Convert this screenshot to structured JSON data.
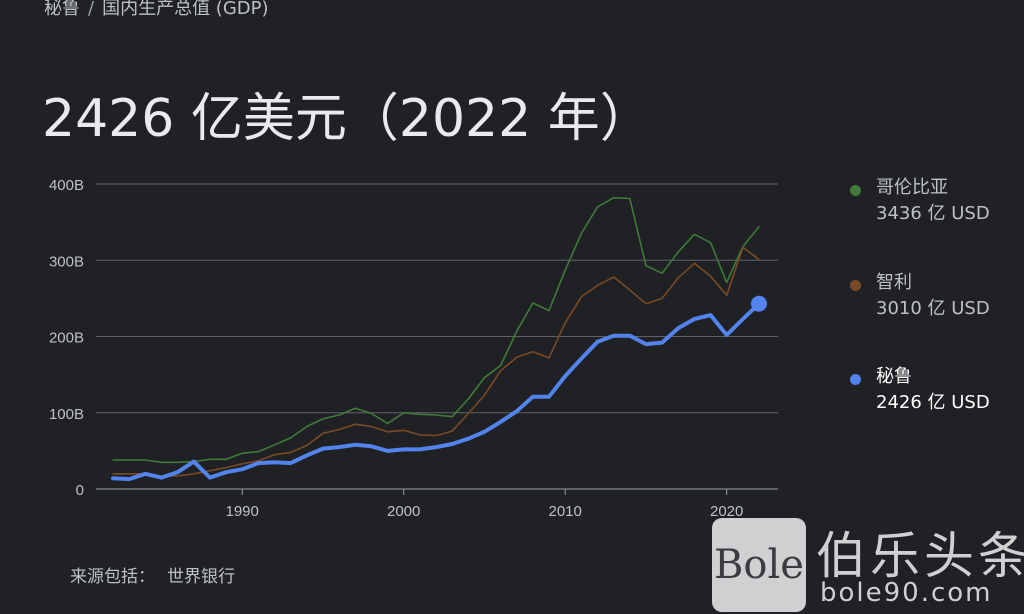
{
  "breadcrumb": {
    "country": "秘鲁",
    "separator": "/",
    "indicator": "国内生产总值 (GDP)"
  },
  "headline": "2426 亿美元（2022 年）",
  "legend": [
    {
      "name": "哥伦比亚",
      "value": "3436 亿 USD",
      "color": "#3f7a3a"
    },
    {
      "name": "智利",
      "value": "3010 亿 USD",
      "color": "#7a4a26"
    },
    {
      "name": "秘鲁",
      "value": "2426 亿 USD",
      "color": "#5383ec"
    }
  ],
  "source": {
    "label": "来源包括：",
    "value": "世界银行"
  },
  "watermark": {
    "logo_text": "Bole",
    "site_name": "伯乐头条",
    "url": "bole90.com"
  },
  "chart_data": {
    "type": "line",
    "ylim": [
      0,
      400
    ],
    "xlim": [
      1982,
      2022
    ],
    "y_ticks": [
      "0",
      "100B",
      "200B",
      "300B",
      "400B"
    ],
    "y_tick_values": [
      0,
      100,
      200,
      300,
      400
    ],
    "x_ticks": [
      "1990",
      "2000",
      "2010",
      "2020"
    ],
    "x_tick_values": [
      1990,
      2000,
      2010,
      2020
    ],
    "grid": true,
    "legend_position": "right",
    "x": [
      1982,
      1983,
      1984,
      1985,
      1986,
      1987,
      1988,
      1989,
      1990,
      1991,
      1992,
      1993,
      1994,
      1995,
      1996,
      1997,
      1998,
      1999,
      2000,
      2001,
      2002,
      2003,
      2004,
      2005,
      2006,
      2007,
      2008,
      2009,
      2010,
      2011,
      2012,
      2013,
      2014,
      2015,
      2016,
      2017,
      2018,
      2019,
      2020,
      2021,
      2022
    ],
    "series": [
      {
        "name": "哥伦比亚",
        "color": "#3f7a3a",
        "width": 1.6,
        "values": [
          38,
          38,
          38,
          35,
          35,
          36,
          39,
          39,
          47,
          49,
          58,
          67,
          82,
          92,
          97,
          106,
          99,
          86,
          100,
          98,
          97,
          95,
          118,
          146,
          162,
          207,
          244,
          234,
          287,
          335,
          370,
          382,
          381,
          293,
          283,
          311,
          334,
          323,
          271,
          318,
          344
        ]
      },
      {
        "name": "智利",
        "color": "#7a4a26",
        "width": 1.6,
        "values": [
          20,
          20,
          20,
          17,
          17,
          20,
          24,
          28,
          33,
          37,
          45,
          48,
          57,
          73,
          78,
          85,
          82,
          75,
          77,
          71,
          70,
          76,
          99,
          123,
          155,
          173,
          180,
          172,
          218,
          252,
          267,
          278,
          261,
          243,
          250,
          277,
          296,
          279,
          254,
          317,
          301
        ]
      },
      {
        "name": "秘鲁",
        "color": "#5383ec",
        "width": 4,
        "values": [
          14,
          13,
          20,
          15,
          22,
          36,
          15,
          22,
          26,
          34,
          35,
          34,
          44,
          53,
          55,
          58,
          56,
          50,
          52,
          52,
          55,
          59,
          66,
          75,
          88,
          102,
          121,
          121,
          148,
          171,
          193,
          201,
          201,
          190,
          192,
          211,
          223,
          228,
          202,
          223,
          243
        ]
      }
    ]
  }
}
